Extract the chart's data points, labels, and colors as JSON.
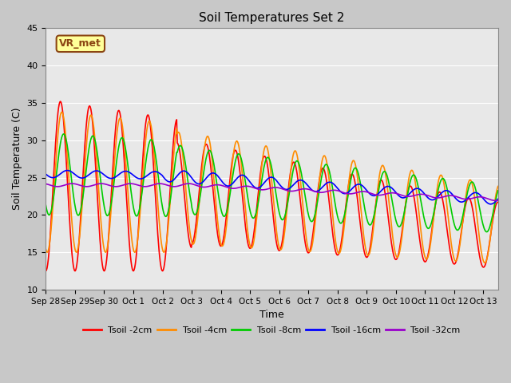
{
  "title": "Soil Temperatures Set 2",
  "xlabel": "Time",
  "ylabel": "Soil Temperature (C)",
  "ylim": [
    10,
    45
  ],
  "yticks": [
    10,
    15,
    20,
    25,
    30,
    35,
    40,
    45
  ],
  "annotation_text": "VR_met",
  "annotation_box_color": "#ffff99",
  "annotation_box_edge": "#8B4513",
  "legend_labels": [
    "Tsoil -2cm",
    "Tsoil -4cm",
    "Tsoil -8cm",
    "Tsoil -16cm",
    "Tsoil -32cm"
  ],
  "line_colors": [
    "#ff0000",
    "#ff8c00",
    "#00cc00",
    "#0000ff",
    "#9900cc"
  ],
  "num_days": 15.5,
  "tick_positions": [
    0,
    1,
    2,
    3,
    4,
    5,
    6,
    7,
    8,
    9,
    10,
    11,
    12,
    13,
    14,
    15
  ],
  "tick_labels": [
    "Sep 28",
    "Sep 29",
    "Sep 30",
    "Oct 1",
    "Oct 2",
    "Oct 3",
    "Oct 4",
    "Oct 5",
    "Oct 6",
    "Oct 7",
    "Oct 8",
    "Oct 9",
    "Oct 10",
    "Oct 11",
    "Oct 12",
    "Oct 13"
  ],
  "xlim": [
    0,
    15.5
  ]
}
